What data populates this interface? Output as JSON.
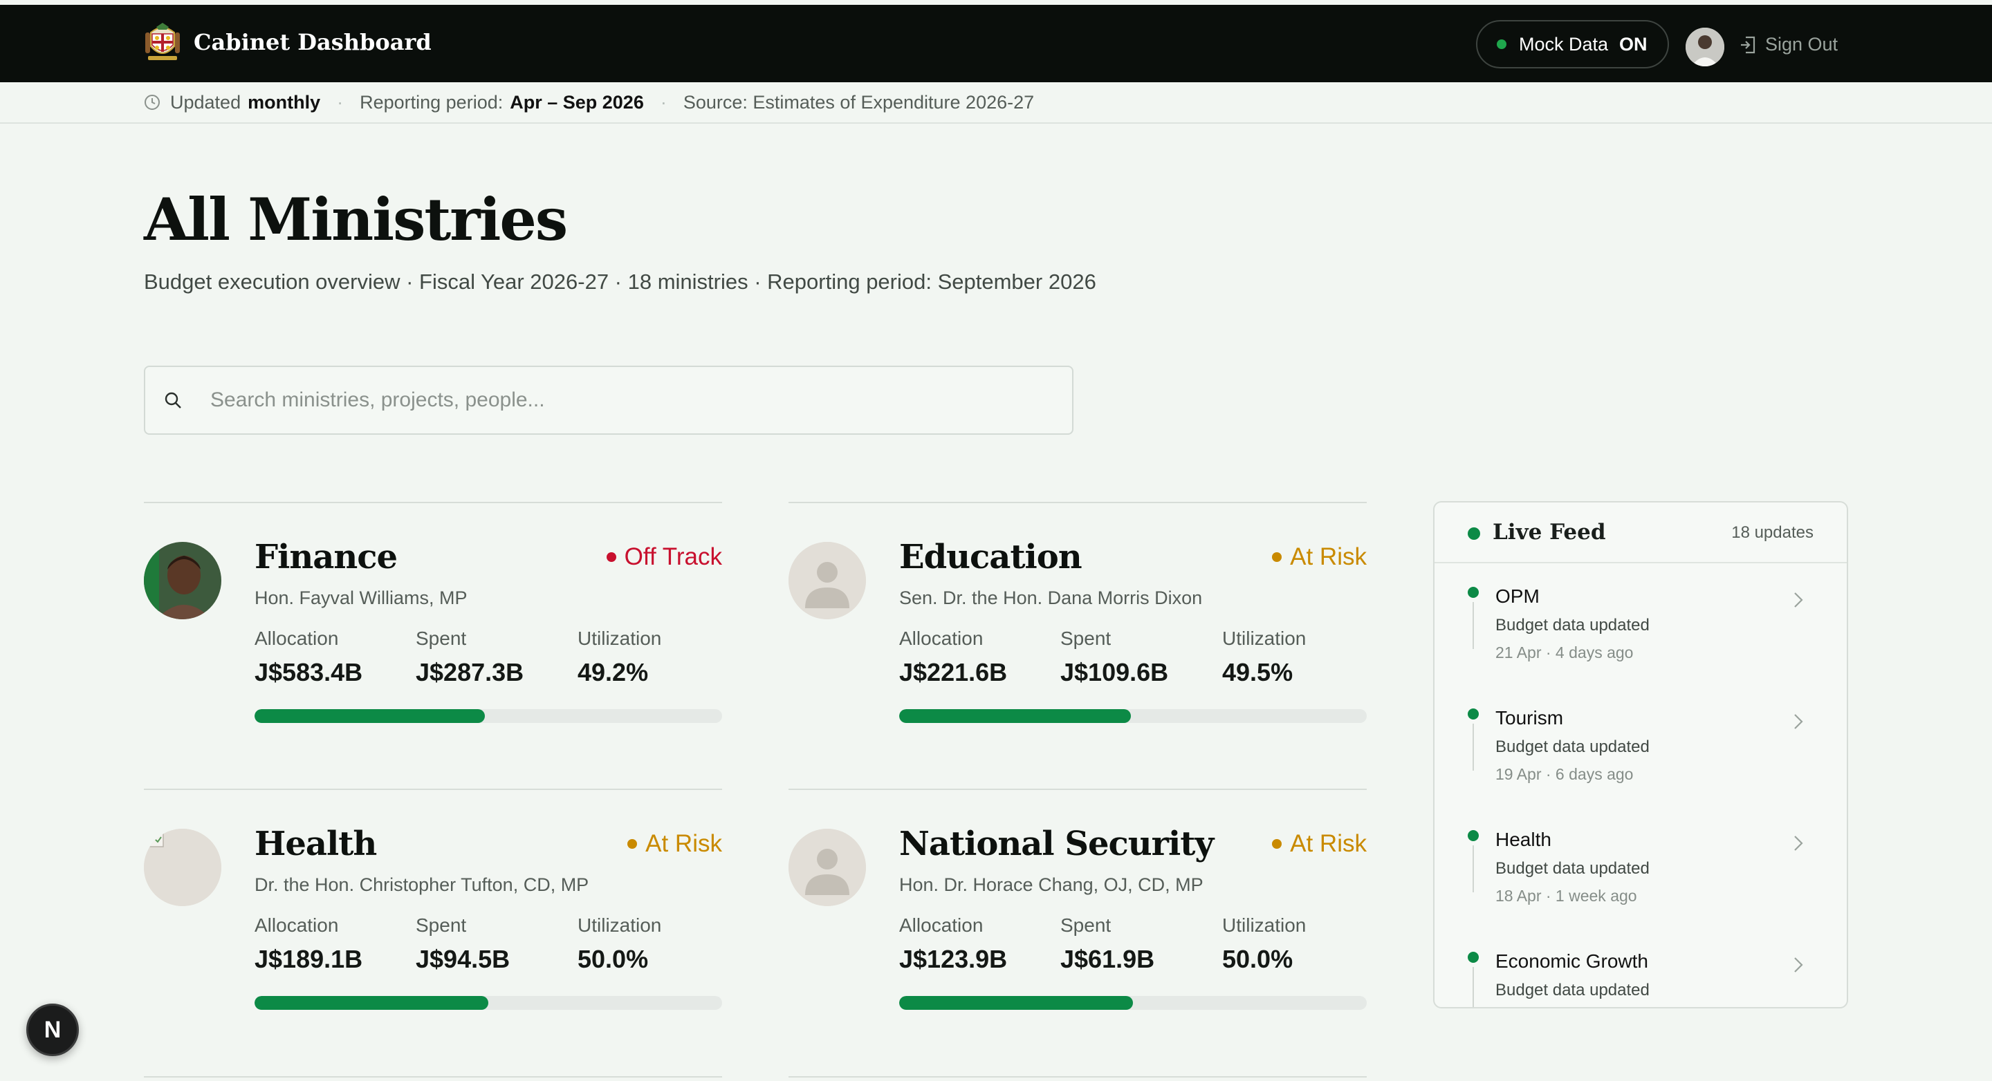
{
  "header": {
    "title": "Cabinet Dashboard",
    "mock_label": "Mock Data",
    "mock_state": "ON",
    "signout_label": "Sign Out"
  },
  "subbar": {
    "updated_label": "Updated",
    "updated_value": "monthly",
    "period_label": "Reporting period:",
    "period_value": "Apr – Sep 2026",
    "source": "Source: Estimates of Expenditure 2026-27"
  },
  "page": {
    "title": "All Ministries",
    "subtitle": "Budget execution overview · Fiscal Year 2026-27 · 18 ministries · Reporting period: September 2026"
  },
  "search": {
    "placeholder": "Search ministries, projects, people..."
  },
  "labels": {
    "allocation": "Allocation",
    "spent": "Spent",
    "utilization": "Utilization"
  },
  "ministries": [
    {
      "name": "Finance",
      "minister": "Hon. Fayval Williams, MP",
      "status": "Off Track",
      "status_color": "#c8102e",
      "allocation": "J$583.4B",
      "spent": "J$287.3B",
      "utilization": "49.2%",
      "progress": 0.492,
      "photo": "portrait"
    },
    {
      "name": "Education",
      "minister": "Sen. Dr. the Hon. Dana Morris Dixon",
      "status": "At Risk",
      "status_color": "#c98a00",
      "allocation": "J$221.6B",
      "spent": "J$109.6B",
      "utilization": "49.5%",
      "progress": 0.495,
      "photo": "placeholder"
    },
    {
      "name": "Health",
      "minister": "Dr. the Hon. Christopher Tufton, CD, MP",
      "status": "At Risk",
      "status_color": "#c98a00",
      "allocation": "J$189.1B",
      "spent": "J$94.5B",
      "utilization": "50.0%",
      "progress": 0.5,
      "photo": "broken"
    },
    {
      "name": "National Security",
      "minister": "Hon. Dr. Horace Chang, OJ, CD, MP",
      "status": "At Risk",
      "status_color": "#c98a00",
      "allocation": "J$123.9B",
      "spent": "J$61.9B",
      "utilization": "50.0%",
      "progress": 0.5,
      "photo": "placeholder"
    }
  ],
  "feed": {
    "title": "Live Feed",
    "count": "18 updates",
    "items": [
      {
        "title": "OPM",
        "desc": "Budget data updated",
        "meta": "21 Apr · 4 days ago"
      },
      {
        "title": "Tourism",
        "desc": "Budget data updated",
        "meta": "19 Apr · 6 days ago"
      },
      {
        "title": "Health",
        "desc": "Budget data updated",
        "meta": "18 Apr · 1 week ago"
      },
      {
        "title": "Economic Growth",
        "desc": "Budget data updated",
        "meta": ""
      }
    ]
  },
  "badge": {
    "letter": "N"
  },
  "colors": {
    "accent": "#0c8a46",
    "off_track": "#c8102e",
    "at_risk": "#c98a00",
    "topbar": "#0a0e0b"
  }
}
